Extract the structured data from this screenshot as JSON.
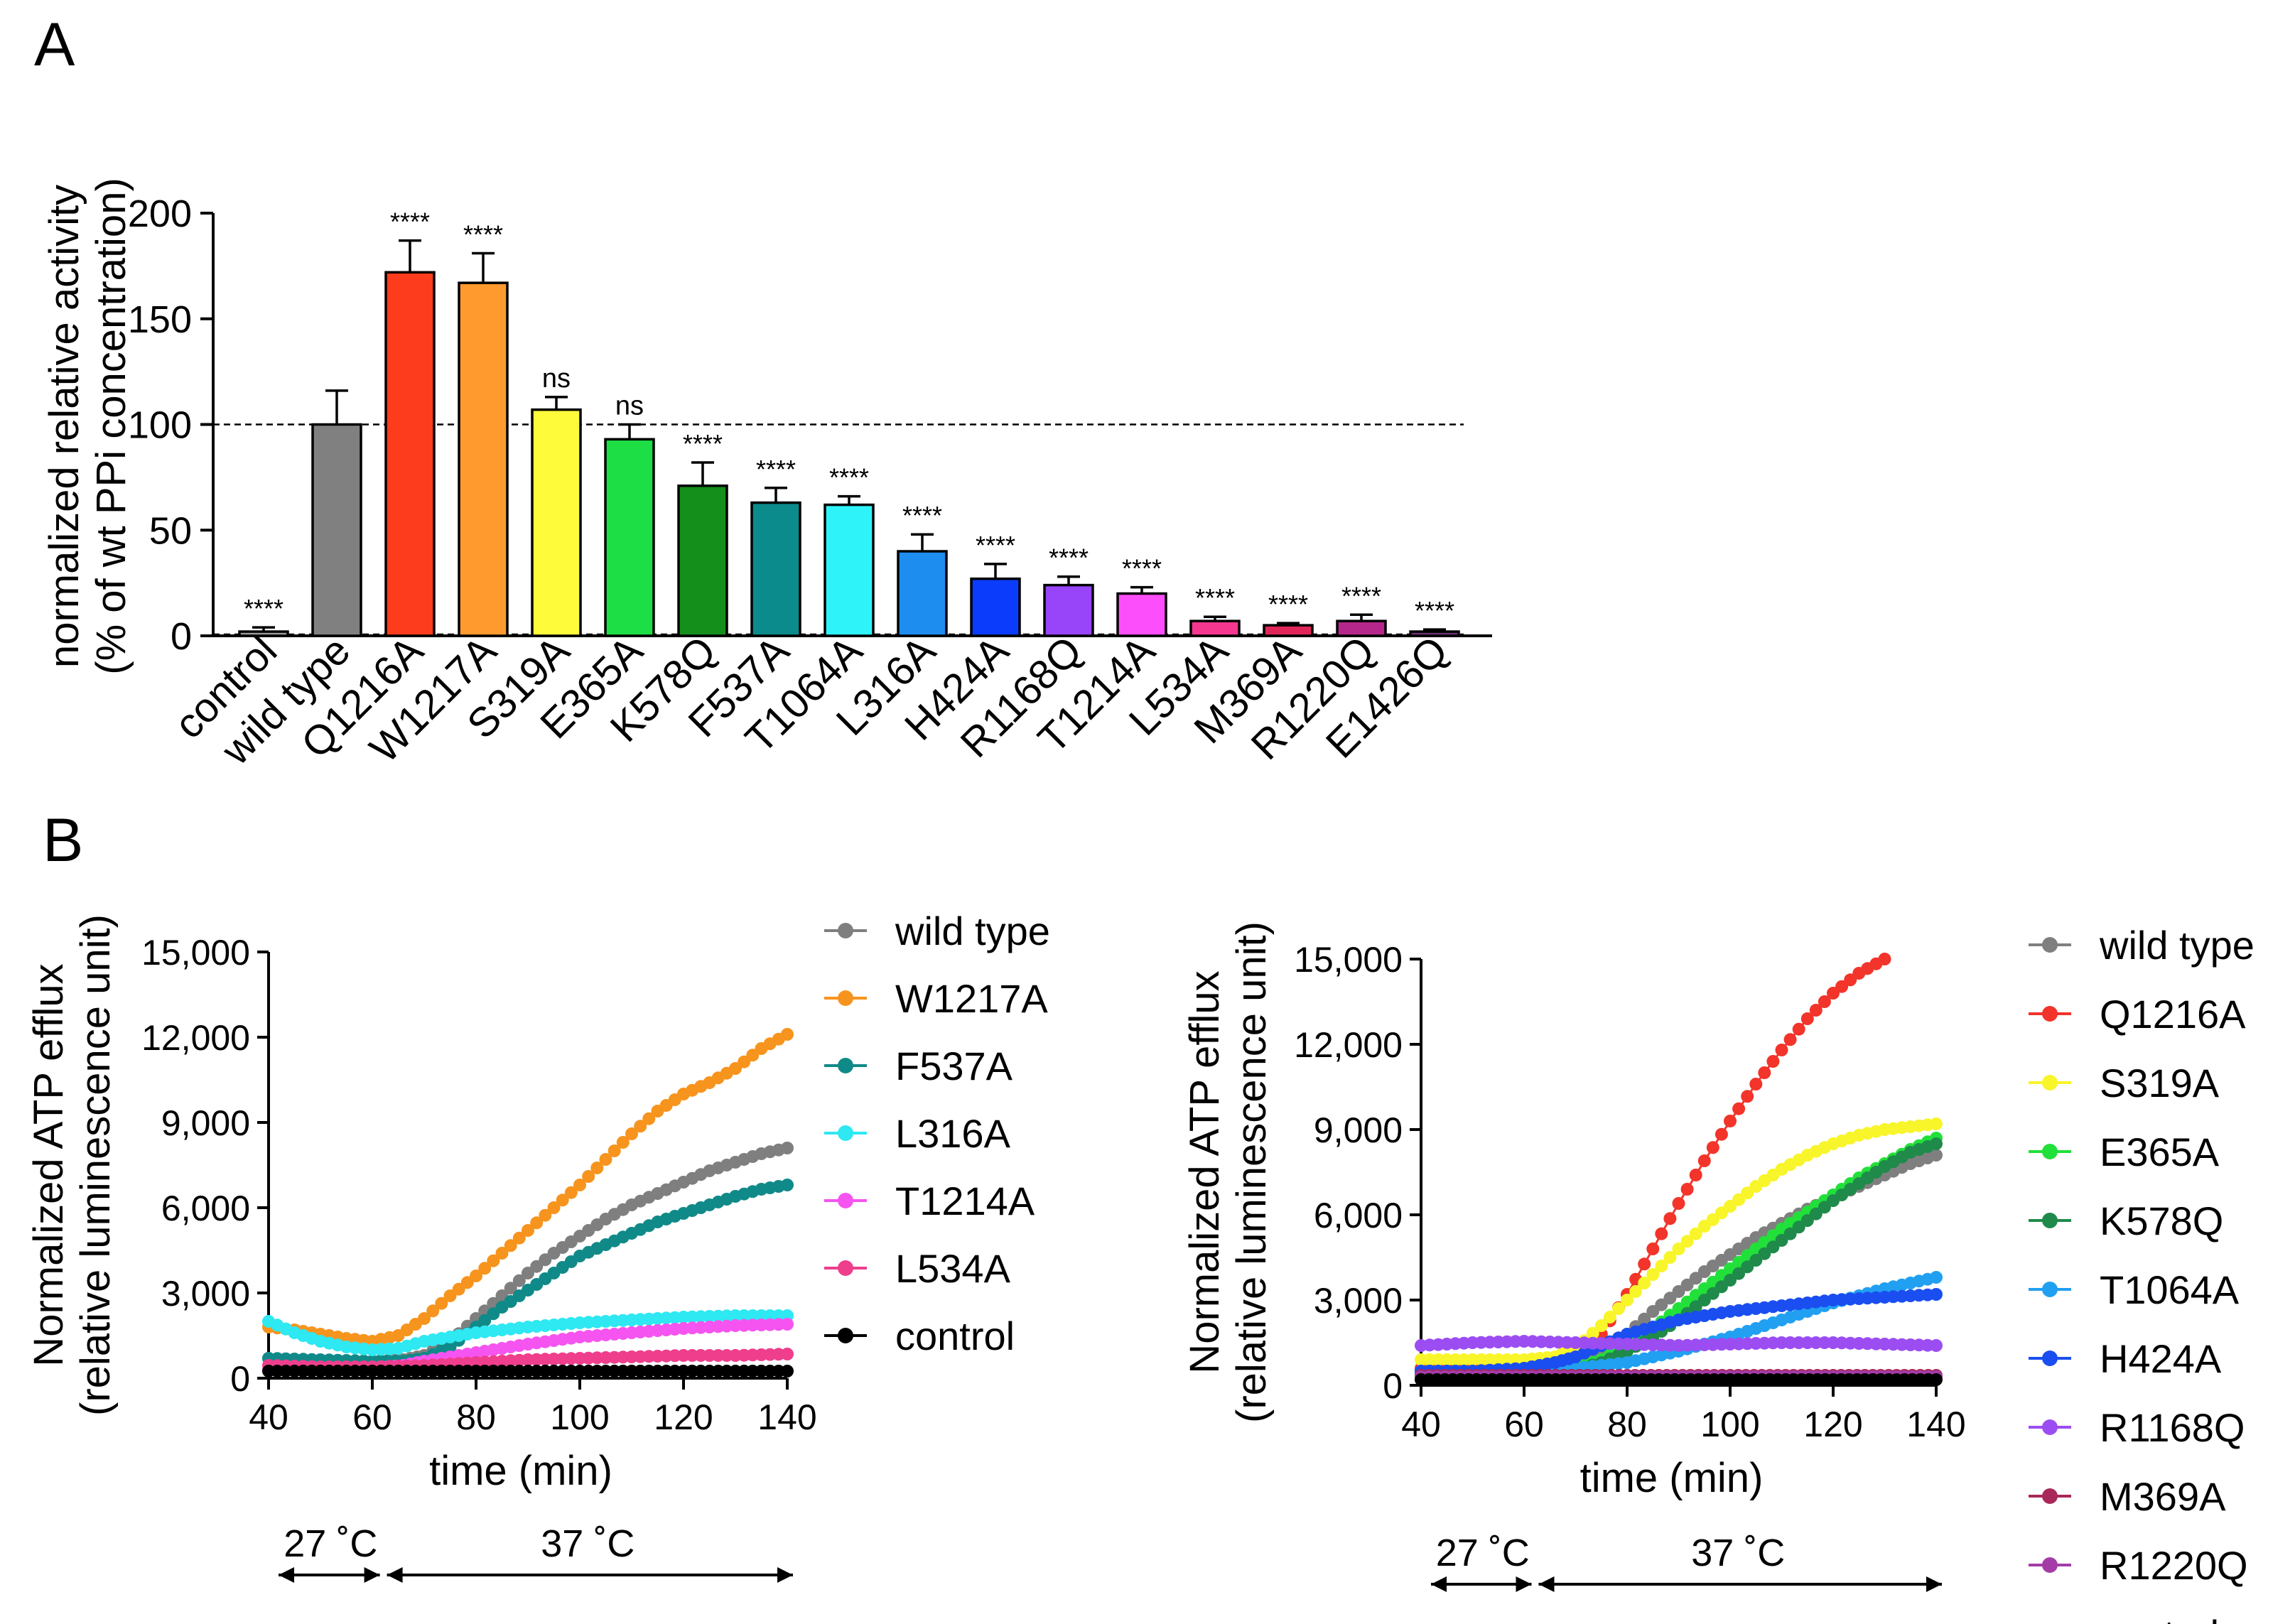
{
  "panels": {
    "a_label": "A",
    "b_label": "B"
  },
  "chart_data": [
    {
      "id": "A",
      "type": "bar",
      "ylabel_line1": "normalized relative activity",
      "ylabel_line2": "(% of wt PPi concentration)",
      "ylim": [
        0,
        200
      ],
      "yticks": [
        0,
        50,
        100,
        150,
        200
      ],
      "reference_line": 100,
      "categories": [
        "control",
        "wild type",
        "Q1216A",
        "W1217A",
        "S319A",
        "E365A",
        "K578Q",
        "F537A",
        "T1064A",
        "L316A",
        "H424A",
        "R1168Q",
        "T1214A",
        "L534A",
        "M369A",
        "R1220Q",
        "E1426Q"
      ],
      "values": [
        2,
        100,
        172,
        167,
        107,
        93,
        71,
        63,
        62,
        40,
        27,
        24,
        20,
        7,
        5,
        7,
        2
      ],
      "errors": [
        2,
        16,
        15,
        14,
        6,
        7,
        11,
        7,
        4,
        8,
        7,
        4,
        3,
        2,
        1,
        3,
        1
      ],
      "significance": [
        "****",
        "",
        "****",
        "****",
        "ns",
        "ns",
        "****",
        "****",
        "****",
        "****",
        "****",
        "****",
        "****",
        "****",
        "****",
        "****",
        "****"
      ],
      "colors": [
        "#9a9a9a",
        "#808080",
        "#fc3c1c",
        "#fe9a2e",
        "#fdfb3a",
        "#1dde44",
        "#158f1c",
        "#0b8b8b",
        "#2ef4fa",
        "#1d8df0",
        "#0b3cfb",
        "#9844f9",
        "#fd4efb",
        "#f6378f",
        "#e02659",
        "#b6278c",
        "#6a3470"
      ]
    },
    {
      "id": "B-left",
      "type": "scatter",
      "ylabel_line1": "Normalized ATP efflux",
      "ylabel_line2": "(relative luminescence unit)",
      "xlabel": "time (min)",
      "xlim": [
        40,
        140
      ],
      "ylim": [
        0,
        15000
      ],
      "xticks": [
        40,
        60,
        80,
        100,
        120,
        140
      ],
      "yticks": [
        "0",
        "3,000",
        "6,000",
        "9,000",
        "12,000",
        "15,000"
      ],
      "series": [
        {
          "name": "wild type",
          "color": "#7f7f7f",
          "x": [
            40,
            50,
            60,
            66,
            70,
            75,
            80,
            85,
            90,
            95,
            100,
            105,
            110,
            115,
            120,
            125,
            130,
            135,
            140
          ],
          "y": [
            700,
            600,
            600,
            650,
            800,
            1300,
            2100,
            2900,
            3700,
            4400,
            5000,
            5600,
            6100,
            6500,
            6900,
            7300,
            7600,
            7900,
            8100
          ]
        },
        {
          "name": "W1217A",
          "color": "#f7941d",
          "x": [
            40,
            45,
            50,
            55,
            60,
            65,
            70,
            75,
            80,
            85,
            90,
            95,
            100,
            105,
            110,
            115,
            120,
            125,
            130,
            135,
            140
          ],
          "y": [
            1800,
            1700,
            1550,
            1400,
            1300,
            1500,
            2100,
            2900,
            3600,
            4400,
            5200,
            6000,
            6800,
            7700,
            8600,
            9400,
            10000,
            10400,
            10900,
            11600,
            12100
          ]
        },
        {
          "name": "F537A",
          "color": "#108a88",
          "x": [
            40,
            50,
            60,
            66,
            70,
            75,
            80,
            85,
            90,
            95,
            100,
            105,
            110,
            115,
            120,
            125,
            130,
            135,
            140
          ],
          "y": [
            700,
            650,
            600,
            600,
            700,
            1100,
            1800,
            2500,
            3100,
            3700,
            4300,
            4700,
            5100,
            5500,
            5800,
            6100,
            6400,
            6650,
            6800
          ]
        },
        {
          "name": "L316A",
          "color": "#2ee8f2",
          "x": [
            40,
            45,
            50,
            55,
            60,
            65,
            70,
            80,
            90,
            100,
            110,
            120,
            130,
            140
          ],
          "y": [
            2000,
            1600,
            1300,
            1100,
            1000,
            1050,
            1300,
            1600,
            1800,
            1950,
            2050,
            2150,
            2200,
            2200
          ]
        },
        {
          "name": "T1214A",
          "color": "#f554f0",
          "x": [
            40,
            50,
            60,
            66,
            70,
            80,
            90,
            100,
            110,
            120,
            130,
            140
          ],
          "y": [
            300,
            300,
            350,
            450,
            600,
            900,
            1200,
            1450,
            1600,
            1750,
            1850,
            1900
          ]
        },
        {
          "name": "L534A",
          "color": "#ee3e8c",
          "x": [
            40,
            50,
            60,
            70,
            80,
            90,
            100,
            110,
            120,
            130,
            140
          ],
          "y": [
            450,
            400,
            400,
            450,
            550,
            650,
            700,
            750,
            800,
            800,
            850
          ]
        },
        {
          "name": "control",
          "color": "#000000",
          "x": [
            40,
            50,
            60,
            70,
            80,
            90,
            100,
            110,
            120,
            130,
            140
          ],
          "y": [
            250,
            250,
            250,
            250,
            250,
            250,
            250,
            250,
            250,
            250,
            250
          ]
        }
      ],
      "legend": [
        "wild type",
        "W1217A",
        "F537A",
        "L316A",
        "T1214A",
        "L534A",
        "control"
      ],
      "temp_labels": [
        "27 ˚C",
        "37 ˚C"
      ]
    },
    {
      "id": "B-right",
      "type": "scatter",
      "ylabel_line1": "Normalized ATP efflux",
      "ylabel_line2": "(relative luminescence unit)",
      "xlabel": "time (min)",
      "xlim": [
        40,
        140
      ],
      "ylim": [
        0,
        15000
      ],
      "xticks": [
        40,
        60,
        80,
        100,
        120,
        140
      ],
      "yticks": [
        "0",
        "3,000",
        "6,000",
        "9,000",
        "12,000",
        "15,000"
      ],
      "series": [
        {
          "name": "wild type",
          "color": "#7f7f7f",
          "x": [
            40,
            50,
            60,
            66,
            70,
            75,
            80,
            85,
            90,
            95,
            100,
            105,
            110,
            115,
            120,
            125,
            130,
            135,
            140
          ],
          "y": [
            400,
            400,
            400,
            450,
            600,
            1000,
            1800,
            2600,
            3300,
            4000,
            4600,
            5200,
            5700,
            6200,
            6600,
            7000,
            7400,
            7800,
            8100
          ]
        },
        {
          "name": "Q1216A",
          "color": "#f2342a",
          "x": [
            40,
            50,
            60,
            66,
            70,
            75,
            80,
            85,
            90,
            95,
            100,
            105,
            110,
            115,
            120,
            125,
            130
          ],
          "y": [
            600,
            600,
            600,
            650,
            900,
            1800,
            3200,
            4800,
            6400,
            7900,
            9300,
            10600,
            11800,
            12900,
            13800,
            14500,
            15000
          ]
        },
        {
          "name": "S319A",
          "color": "#f8f52a",
          "x": [
            40,
            50,
            60,
            66,
            70,
            75,
            80,
            85,
            90,
            95,
            100,
            105,
            110,
            115,
            120,
            125,
            130,
            135,
            140
          ],
          "y": [
            900,
            900,
            900,
            1000,
            1300,
            2100,
            3000,
            3900,
            4800,
            5600,
            6300,
            7000,
            7600,
            8100,
            8500,
            8800,
            9000,
            9100,
            9200
          ]
        },
        {
          "name": "E365A",
          "color": "#22e03a",
          "x": [
            40,
            50,
            60,
            66,
            70,
            75,
            80,
            85,
            90,
            95,
            100,
            105,
            110,
            115,
            120,
            125,
            130,
            135,
            140
          ],
          "y": [
            400,
            400,
            400,
            450,
            600,
            900,
            1400,
            2000,
            2700,
            3400,
            4100,
            4800,
            5500,
            6100,
            6700,
            7300,
            7800,
            8300,
            8700
          ]
        },
        {
          "name": "K578Q",
          "color": "#1f8a4a",
          "x": [
            40,
            50,
            60,
            66,
            70,
            75,
            80,
            85,
            90,
            95,
            100,
            105,
            110,
            115,
            120,
            125,
            130,
            135,
            140
          ],
          "y": [
            400,
            400,
            400,
            450,
            550,
            800,
            1200,
            1700,
            2300,
            3000,
            3700,
            4400,
            5100,
            5800,
            6500,
            7100,
            7700,
            8200,
            8500
          ]
        },
        {
          "name": "T1064A",
          "color": "#21a0f2",
          "x": [
            40,
            50,
            60,
            70,
            80,
            90,
            100,
            110,
            120,
            130,
            140
          ],
          "y": [
            500,
            500,
            500,
            600,
            800,
            1200,
            1700,
            2300,
            2900,
            3400,
            3800
          ]
        },
        {
          "name": "H424A",
          "color": "#1a4ef0",
          "x": [
            40,
            50,
            60,
            66,
            70,
            75,
            80,
            90,
            100,
            110,
            120,
            130,
            140
          ],
          "y": [
            500,
            500,
            600,
            800,
            1000,
            1400,
            1800,
            2300,
            2600,
            2800,
            3000,
            3100,
            3200
          ]
        },
        {
          "name": "R1168Q",
          "color": "#9b4df2",
          "x": [
            40,
            50,
            60,
            70,
            80,
            90,
            100,
            110,
            120,
            130,
            140
          ],
          "y": [
            1400,
            1500,
            1550,
            1500,
            1450,
            1400,
            1450,
            1500,
            1500,
            1450,
            1400
          ]
        },
        {
          "name": "M369A",
          "color": "#a8285a",
          "x": [
            40,
            60,
            80,
            100,
            120,
            140
          ],
          "y": [
            350,
            350,
            350,
            350,
            350,
            350
          ]
        },
        {
          "name": "R1220Q",
          "color": "#a43ca8",
          "x": [
            40,
            60,
            80,
            100,
            120,
            140
          ],
          "y": [
            300,
            300,
            300,
            300,
            300,
            300
          ]
        },
        {
          "name": "control",
          "color": "#000000",
          "x": [
            40,
            60,
            80,
            100,
            120,
            140
          ],
          "y": [
            200,
            200,
            200,
            200,
            200,
            200
          ]
        }
      ],
      "legend": [
        "wild type",
        "Q1216A",
        "S319A",
        "E365A",
        "K578Q",
        "T1064A",
        "H424A",
        "R1168Q",
        "M369A",
        "R1220Q",
        "control"
      ],
      "temp_labels": [
        "27 ˚C",
        "37 ˚C"
      ]
    }
  ]
}
